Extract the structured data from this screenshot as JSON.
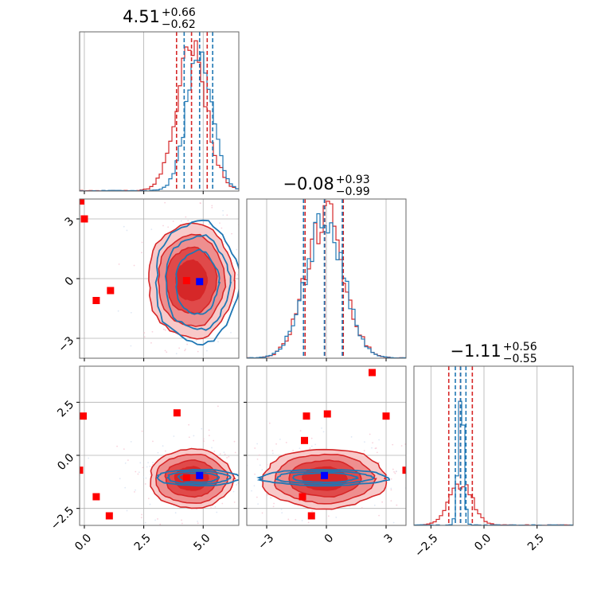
{
  "chart_data": {
    "type": "corner",
    "colors": {
      "primary": "#1f77b4",
      "secondary": "#d62728",
      "truth_a": "#0000ff",
      "truth_b": "#ff0000",
      "grid": "#b0b0b0"
    },
    "titles": [
      {
        "value": "4.51",
        "plus": "+0.66",
        "minus": "−0.62"
      },
      {
        "value": "−0.08",
        "plus": "+0.93",
        "minus": "−0.99"
      },
      {
        "value": "−1.11",
        "plus": "+0.56",
        "minus": "−0.55"
      }
    ],
    "ranges": [
      [
        -0.2,
        6.5
      ],
      [
        -4.0,
        4.0
      ],
      [
        -3.3,
        4.2
      ]
    ],
    "ticks": [
      {
        "values": [
          0.0,
          2.5,
          5.0
        ],
        "labels": [
          "0.0",
          "2.5",
          "5.0"
        ]
      },
      {
        "values": [
          -3,
          0,
          3
        ],
        "labels": [
          "−3",
          "0",
          "3"
        ]
      },
      {
        "values": [
          -2.5,
          0.0,
          2.5
        ],
        "labels": [
          "−2.5",
          "0.0",
          "2.5"
        ]
      }
    ],
    "grid": true,
    "quantiles_primary": [
      [
        4.2,
        4.85,
        5.4
      ],
      [
        -1.15,
        -0.1,
        0.8
      ],
      [
        -1.35,
        -1.1,
        -0.85
      ]
    ],
    "quantiles_secondary": [
      [
        3.88,
        4.51,
        5.17
      ],
      [
        -1.07,
        -0.08,
        0.85
      ],
      [
        -1.66,
        -1.11,
        -0.55
      ]
    ],
    "hist_primary_1d": [
      {
        "mean": 4.85,
        "sd": 0.55,
        "peak": 0.82
      },
      {
        "mean": -0.1,
        "sd": 0.95,
        "peak": 0.87
      },
      {
        "mean": -1.1,
        "sd": 0.13,
        "peak": 0.88
      }
    ],
    "hist_secondary_1d": [
      {
        "mean": 4.51,
        "sd": 0.64,
        "peak": 0.85
      },
      {
        "mean": -0.08,
        "sd": 0.96,
        "peak": 0.88
      },
      {
        "mean": -1.11,
        "sd": 0.55,
        "peak": 0.27
      }
    ],
    "contours_primary": [
      {
        "x": 1,
        "y": 0,
        "cx": 4.75,
        "cy": -0.2,
        "levels": [
          [
            0.9,
            1.6
          ],
          [
            1.35,
            2.35
          ],
          [
            1.75,
            3.05
          ]
        ]
      },
      {
        "x": 2,
        "y": 0,
        "cx": 4.8,
        "cy": -1.05,
        "levels": [
          [
            0.85,
            0.22
          ],
          [
            1.3,
            0.3
          ],
          [
            1.75,
            0.38
          ]
        ]
      },
      {
        "x": 2,
        "y": 1,
        "cx": -0.1,
        "cy": -1.05,
        "levels": [
          [
            1.6,
            0.22
          ],
          [
            2.4,
            0.3
          ],
          [
            3.2,
            0.38
          ]
        ]
      }
    ],
    "contours_secondary": [
      {
        "x": 1,
        "y": 0,
        "cx": 4.5,
        "cy": -0.1,
        "levels": [
          [
            0.65,
            1.0
          ],
          [
            1.05,
            1.65
          ],
          [
            1.4,
            2.3
          ],
          [
            1.8,
            2.9
          ]
        ]
      },
      {
        "x": 2,
        "y": 0,
        "cx": 4.5,
        "cy": -1.1,
        "levels": [
          [
            0.7,
            0.55
          ],
          [
            1.1,
            0.85
          ],
          [
            1.5,
            1.15
          ],
          [
            1.75,
            1.4
          ]
        ]
      },
      {
        "x": 2,
        "y": 1,
        "cx": -0.1,
        "cy": -1.1,
        "levels": [
          [
            1.1,
            0.55
          ],
          [
            1.8,
            0.85
          ],
          [
            2.5,
            1.15
          ],
          [
            3.1,
            1.4
          ]
        ]
      }
    ],
    "markers_secondary": [
      {
        "x": 1,
        "y": 0,
        "points": [
          [
            0.0,
            3.0
          ],
          [
            0.5,
            -1.1
          ],
          [
            1.1,
            -0.6
          ],
          [
            4.3,
            -0.1
          ],
          [
            -0.15,
            3.9
          ]
        ]
      },
      {
        "x": 2,
        "y": 0,
        "points": [
          [
            -0.05,
            1.85
          ],
          [
            0.5,
            -1.95
          ],
          [
            1.05,
            -2.85
          ],
          [
            3.9,
            2.0
          ],
          [
            4.3,
            -1.05
          ],
          [
            -0.2,
            -0.7
          ]
        ]
      },
      {
        "x": 2,
        "y": 1,
        "points": [
          [
            -1.0,
            1.85
          ],
          [
            0.05,
            1.95
          ],
          [
            -1.1,
            0.7
          ],
          [
            -1.2,
            -1.95
          ],
          [
            -0.75,
            -2.85
          ],
          [
            2.3,
            3.9
          ],
          [
            3.0,
            1.85
          ],
          [
            4.0,
            -0.7
          ]
        ]
      }
    ],
    "markers_primary": [
      {
        "x": 1,
        "y": 0,
        "points": [
          [
            4.85,
            -0.15
          ]
        ]
      },
      {
        "x": 2,
        "y": 0,
        "points": [
          [
            4.85,
            -0.95
          ]
        ]
      },
      {
        "x": 2,
        "y": 1,
        "points": [
          [
            -0.1,
            -0.95
          ]
        ]
      }
    ]
  }
}
